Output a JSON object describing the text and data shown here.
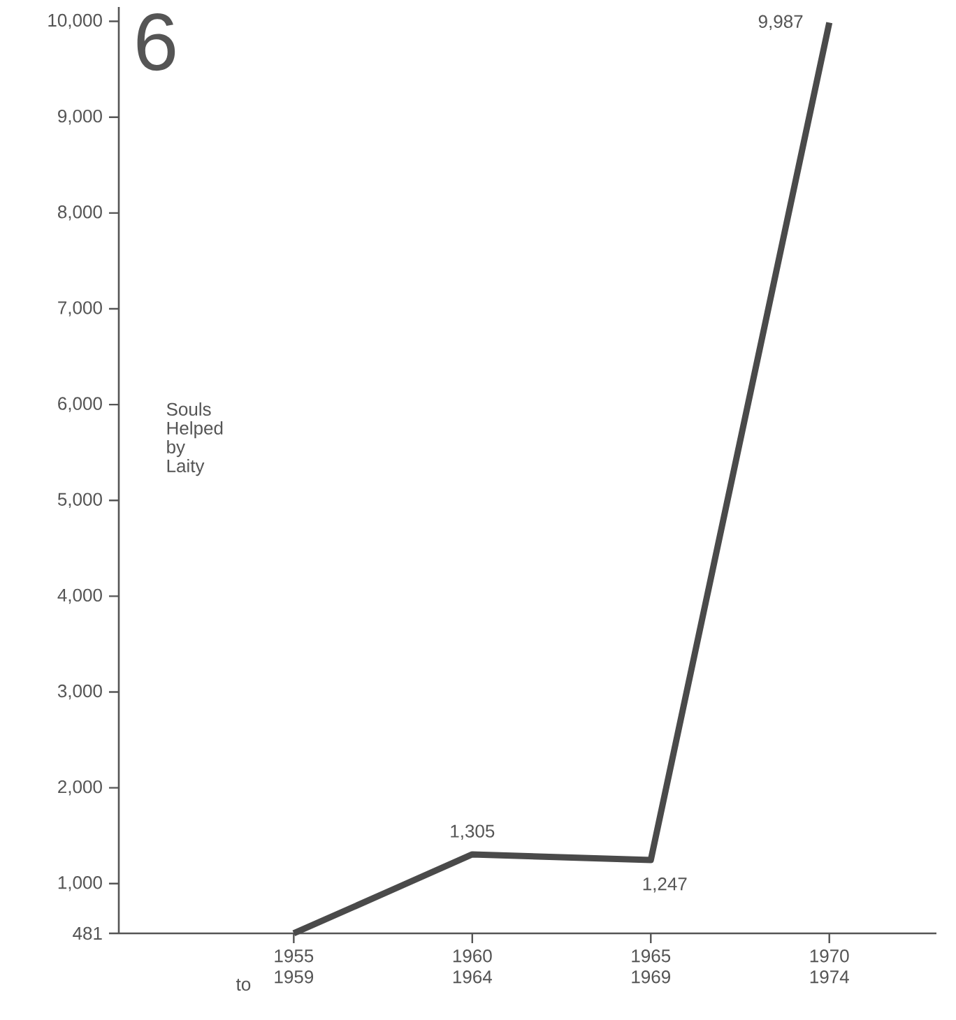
{
  "chart_data": {
    "type": "line",
    "title": "6",
    "categories": [
      "1955 1959",
      "1960 1964",
      "1965 1969",
      "1970 1974"
    ],
    "values": [
      481,
      1305,
      1247,
      9987
    ],
    "value_labels": [
      null,
      "1,305",
      "1,247",
      "9,987"
    ],
    "color": "#4a4a4a",
    "line_style": "solid",
    "marker": "none",
    "grid": false,
    "ylim": [
      481,
      10150
    ],
    "yticks": [
      481,
      {
        "value": 1000,
        "label": "1,000"
      },
      {
        "value": 2000,
        "label": "2,000"
      },
      {
        "value": 3000,
        "label": "3,000"
      },
      {
        "value": 4000,
        "label": "4,000"
      },
      {
        "value": 5000,
        "label": "5,000"
      },
      {
        "value": 6000,
        "label": "6,000"
      },
      {
        "value": 7000,
        "label": "7,000"
      },
      {
        "value": 8000,
        "label": "8,000"
      },
      {
        "value": 9000,
        "label": "9,000"
      },
      {
        "value": 10000,
        "label": "10,000"
      }
    ],
    "annotations": [
      "to",
      "Souls Helped by Laity"
    ]
  }
}
